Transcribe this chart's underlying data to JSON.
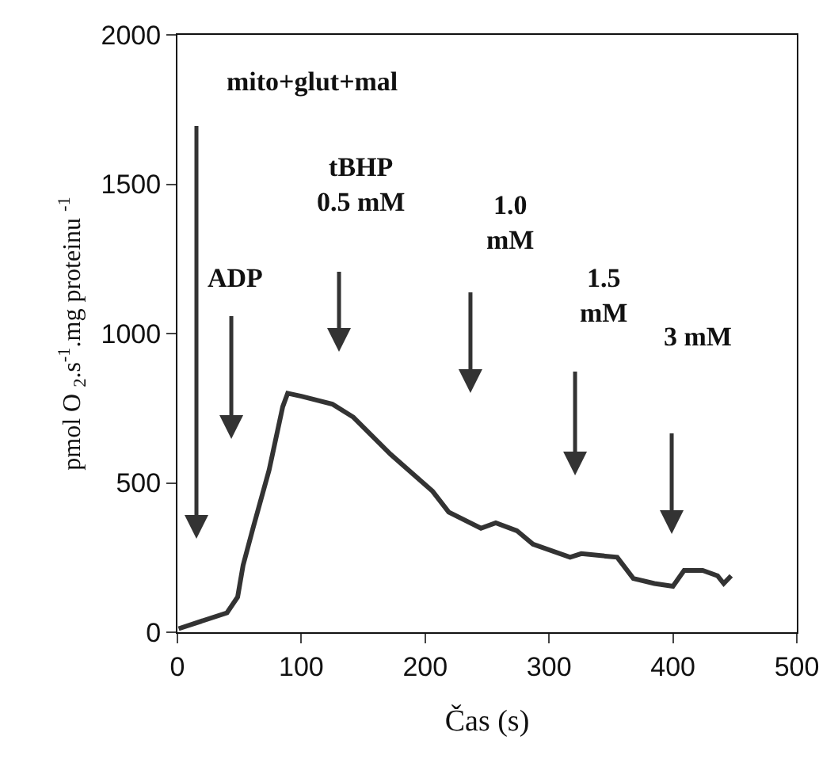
{
  "chart_data": {
    "type": "line",
    "xlabel": "Čas (s)",
    "ylabel": "pmol O $_{2}$.s$^{-1}$.mg proteinu $^{-1}$",
    "xlim": [
      0,
      500
    ],
    "xticks": [
      0,
      100,
      200,
      300,
      400,
      500
    ],
    "ylim": [
      0,
      2000
    ],
    "yticks": [
      0,
      500,
      1000,
      1500,
      2000
    ],
    "legend": false,
    "marker": "none",
    "line_style": "solid",
    "series": [
      {
        "color": "#333333",
        "x": [
          1,
          40,
          48.6,
          53,
          61,
          74,
          85,
          89,
          100,
          125,
          142,
          172,
          206,
          219,
          245,
          257,
          274,
          287,
          317,
          326,
          355,
          368,
          385,
          400,
          409,
          424,
          436,
          441,
          447
        ],
        "values": [
          12,
          65,
          118,
          224,
          348,
          543,
          755,
          800,
          790,
          764,
          720,
          596,
          472,
          402,
          348,
          366,
          340,
          295,
          251,
          263,
          251,
          180,
          163,
          154,
          207,
          207,
          189,
          163,
          189
        ]
      }
    ],
    "annotations": [
      "mito+glut+mal",
      "ADP",
      "tBHP\n0.5 mM",
      "1.0\nmM",
      "1.5\nmM",
      "3 mM"
    ]
  }
}
